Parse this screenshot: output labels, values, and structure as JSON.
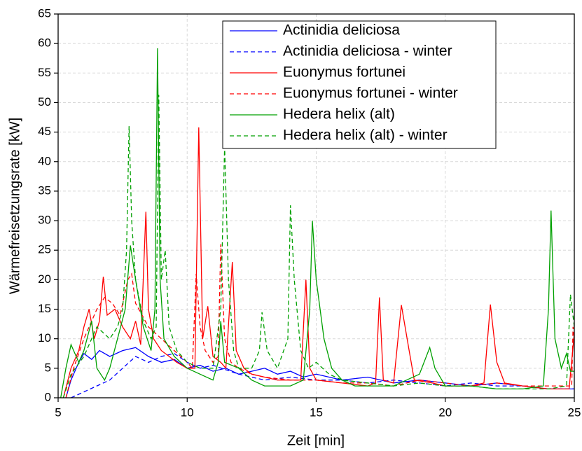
{
  "chart_data": {
    "type": "line",
    "xlabel": "Zeit [min]",
    "ylabel": "Wärmefreisetzungsrate [kW]",
    "xlim": [
      5,
      25
    ],
    "xticks": [
      5,
      10,
      15,
      20,
      25
    ],
    "ylim": [
      0,
      65
    ],
    "yticks": [
      0,
      5,
      10,
      15,
      20,
      25,
      30,
      35,
      40,
      45,
      50,
      55,
      60,
      65
    ],
    "grid": true,
    "legend": "top",
    "series": [
      {
        "name": "Actinidia deliciosa",
        "color": "#0000ff",
        "dashed": false,
        "x": [
          5.3,
          5.5,
          5.8,
          6,
          6.3,
          6.6,
          7,
          7.5,
          8,
          8.5,
          9,
          9.5,
          10,
          10.5,
          11,
          11.5,
          12,
          12.5,
          13,
          13.5,
          14,
          14.5,
          15,
          16,
          17,
          18,
          19,
          20,
          21,
          22,
          23,
          24,
          25
        ],
        "values": [
          0,
          3,
          6,
          7.5,
          6.5,
          8,
          7,
          8,
          8.5,
          7,
          6,
          6.5,
          5,
          5.5,
          4.5,
          5,
          4,
          4.5,
          5,
          4,
          4.5,
          3.5,
          4,
          3,
          3.5,
          2.5,
          3,
          2.5,
          2,
          2.5,
          2,
          1.5,
          1.5
        ]
      },
      {
        "name": "Actinidia deliciosa - winter",
        "color": "#0000ff",
        "dashed": true,
        "x": [
          5.5,
          6,
          6.5,
          7,
          7.5,
          8,
          8.5,
          9,
          9.5,
          10,
          10.5,
          11,
          12,
          13,
          14,
          15,
          16,
          17,
          18,
          19,
          20,
          21,
          22,
          23,
          24,
          25
        ],
        "values": [
          0,
          1,
          2,
          3,
          5,
          7,
          6,
          7,
          7.5,
          6,
          5,
          5.5,
          4,
          3,
          3.5,
          3,
          3,
          2.5,
          3,
          2.5,
          2,
          2.5,
          2,
          2,
          1.5,
          1.5
        ]
      },
      {
        "name": "Euonymus fortunei",
        "color": "#ff0000",
        "dashed": false,
        "x": [
          5.2,
          5.5,
          5.8,
          6,
          6.2,
          6.4,
          6.6,
          6.75,
          6.9,
          7.2,
          7.5,
          7.8,
          8,
          8.2,
          8.4,
          8.5,
          8.7,
          9,
          9.3,
          9.6,
          10,
          10.3,
          10.45,
          10.6,
          10.8,
          11,
          11.3,
          11.5,
          11.75,
          11.9,
          12.2,
          12.5,
          13,
          13.5,
          14,
          14.4,
          14.6,
          14.75,
          15,
          16,
          17,
          17.3,
          17.45,
          17.6,
          18,
          18.3,
          18.6,
          18.8,
          19.5,
          20,
          21,
          21.5,
          21.75,
          22,
          22.3,
          23,
          24,
          24.8,
          25
        ],
        "values": [
          0,
          5,
          8,
          12,
          15,
          10,
          13,
          20.5,
          14,
          15,
          12,
          10,
          13,
          9,
          31.5,
          15,
          10,
          8,
          7,
          6,
          5,
          5,
          45.8,
          10,
          15.5,
          7,
          6,
          5,
          23,
          8,
          5,
          4,
          3.5,
          3,
          3,
          3,
          20,
          5,
          3,
          2.5,
          2,
          2.5,
          17,
          3,
          2.5,
          15.7,
          8,
          3,
          2.5,
          2,
          2,
          2.5,
          15.8,
          6,
          2.5,
          2,
          1.5,
          1.5,
          11
        ]
      },
      {
        "name": "Euonymus fortunei - winter",
        "color": "#ff0000",
        "dashed": true,
        "x": [
          5.3,
          5.6,
          6,
          6.5,
          6.8,
          7.1,
          7.4,
          7.7,
          7.85,
          8,
          8.5,
          9,
          9.5,
          10,
          10.2,
          10.35,
          10.5,
          10.7,
          11,
          11.2,
          11.3,
          11.45,
          11.7,
          12,
          12.5,
          13,
          14,
          15,
          16,
          17,
          18,
          19,
          20,
          21,
          22,
          23,
          24,
          24.9,
          24.95,
          25
        ],
        "values": [
          0,
          5,
          10,
          15,
          17,
          16,
          14,
          20,
          21,
          16,
          12,
          10,
          8,
          6,
          5,
          21,
          12,
          8,
          6,
          7,
          26,
          10,
          6,
          5,
          4,
          3.5,
          3,
          3,
          2.5,
          2.5,
          2,
          3,
          2.5,
          2,
          2.5,
          2,
          2,
          2,
          12,
          10
        ]
      },
      {
        "name": "Hedera helix (alt)",
        "color": "#00a000",
        "dashed": false,
        "x": [
          5.1,
          5.3,
          5.5,
          5.8,
          6,
          6.3,
          6.5,
          6.8,
          7,
          7.3,
          7.6,
          7.8,
          8,
          8.3,
          8.6,
          8.75,
          8.85,
          8.95,
          9.1,
          9.5,
          10,
          10.5,
          11,
          11.2,
          11.3,
          11.45,
          12,
          12.5,
          13,
          14,
          14.5,
          14.75,
          14.85,
          15,
          15.3,
          15.6,
          16,
          16.5,
          17,
          18,
          18.5,
          19,
          19.4,
          19.6,
          20,
          21,
          22,
          23,
          23.8,
          24,
          24.1,
          24.25,
          24.5,
          24.7,
          24.85,
          25
        ],
        "values": [
          0,
          5,
          9,
          6,
          8,
          13,
          5,
          3,
          5,
          10,
          15,
          25.8,
          20,
          12,
          8,
          15,
          59.2,
          20,
          10,
          7,
          5,
          4,
          3,
          6,
          13,
          6,
          5,
          3,
          2,
          2,
          3,
          15,
          30,
          20,
          10,
          5,
          3,
          2,
          2,
          2,
          3,
          4,
          8.5,
          5,
          2,
          2,
          1.5,
          1.5,
          2,
          15,
          31.7,
          10,
          5,
          7.5,
          4.5,
          4.5
        ]
      },
      {
        "name": "Hedera helix (alt) - winter",
        "color": "#00a000",
        "dashed": true,
        "x": [
          5.2,
          5.5,
          6,
          6.5,
          7,
          7.3,
          7.5,
          7.65,
          7.75,
          7.85,
          8,
          8.3,
          8.6,
          8.8,
          8.9,
          9,
          9.15,
          9.3,
          9.6,
          10,
          10.5,
          11,
          11.3,
          11.45,
          11.6,
          11.8,
          12,
          12.5,
          12.8,
          12.9,
          13.1,
          13.5,
          13.9,
          14,
          14.15,
          14.4,
          14.7,
          15,
          15.5,
          16,
          17,
          18,
          19,
          20,
          21,
          22,
          23,
          24,
          24.7,
          24.85,
          25
        ],
        "values": [
          0,
          4,
          7,
          12,
          10,
          12,
          15,
          25,
          46,
          30,
          20,
          13,
          10,
          12,
          51.3,
          20,
          25,
          12,
          8,
          6,
          5,
          5,
          15,
          42.6,
          20,
          8,
          5,
          5,
          8,
          14.5,
          8,
          5,
          10,
          32.6,
          20,
          8,
          5,
          6,
          4,
          3,
          2.5,
          2,
          2.5,
          2,
          2,
          1.5,
          1.5,
          1.5,
          2,
          17.5,
          12
        ]
      }
    ]
  }
}
